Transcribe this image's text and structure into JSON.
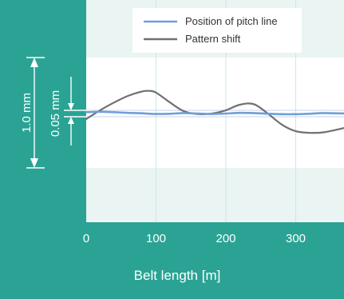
{
  "chart_data": {
    "type": "line",
    "xlabel": "Belt length [m]",
    "x_ticks": [
      0,
      100,
      200,
      300
    ],
    "xlim": [
      0,
      370
    ],
    "ylim": [
      -0.5,
      0.5
    ],
    "grid": true,
    "legend_position": "top-right",
    "series": [
      {
        "name": "Position of pitch line",
        "color": "#6f9fd8",
        "x": [
          0,
          20,
          40,
          60,
          80,
          100,
          120,
          140,
          160,
          180,
          200,
          220,
          240,
          260,
          280,
          300,
          320,
          340,
          370
        ],
        "y": [
          0.012,
          0.016,
          0.012,
          0.006,
          0.002,
          -0.004,
          -0.002,
          0.004,
          0.0,
          -0.004,
          0.0,
          0.006,
          0.004,
          -0.002,
          -0.006,
          -0.006,
          -0.002,
          0.004,
          0.0
        ]
      },
      {
        "name": "Pattern shift",
        "color": "#707070",
        "x": [
          0,
          20,
          40,
          60,
          80,
          90,
          100,
          120,
          140,
          160,
          180,
          200,
          220,
          240,
          260,
          280,
          300,
          320,
          340,
          370
        ],
        "y": [
          -0.05,
          0.03,
          0.1,
          0.16,
          0.2,
          0.205,
          0.19,
          0.1,
          0.02,
          -0.005,
          0.0,
          0.03,
          0.08,
          0.085,
          0.0,
          -0.1,
          -0.16,
          -0.175,
          -0.17,
          -0.13
        ]
      }
    ],
    "annotations": [
      {
        "label": "1.0 mm",
        "span": 1.0
      },
      {
        "label": "0.05 mm",
        "span": 0.05
      }
    ]
  }
}
